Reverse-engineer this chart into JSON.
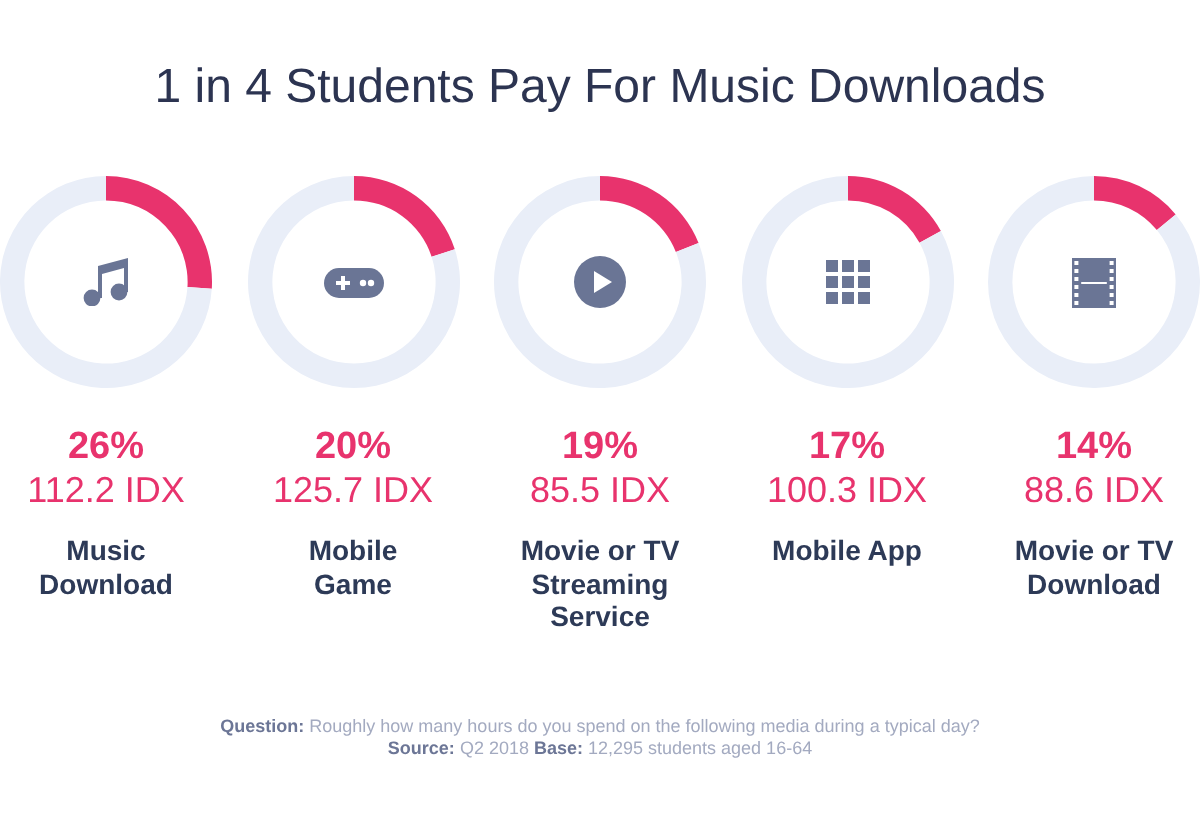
{
  "chart_data": [
    {
      "type": "other",
      "title": "1 in 4 Students Pay For Music Downloads"
    },
    {
      "type": "donut",
      "title": "Music Download",
      "categories": [
        null,
        null
      ],
      "values": [
        26,
        74
      ],
      "colors": [
        "#e8336d",
        "#e9eef8"
      ],
      "annotations": [
        "26%",
        "112.2 IDX"
      ]
    },
    {
      "type": "donut",
      "title": "Mobile Game",
      "categories": [
        null,
        null
      ],
      "values": [
        20,
        80
      ],
      "colors": [
        "#e8336d",
        "#e9eef8"
      ],
      "annotations": [
        "20%",
        "125.7 IDX"
      ]
    },
    {
      "type": "donut",
      "title": "Movie or TV Streaming Service",
      "categories": [
        null,
        null
      ],
      "values": [
        19,
        81
      ],
      "colors": [
        "#e8336d",
        "#e9eef8"
      ],
      "annotations": [
        "19%",
        "85.5 IDX"
      ]
    },
    {
      "type": "donut",
      "title": "Mobile App",
      "categories": [
        null,
        null
      ],
      "values": [
        17,
        83
      ],
      "colors": [
        "#e8336d",
        "#e9eef8"
      ],
      "annotations": [
        "17%",
        "100.3 IDX"
      ]
    },
    {
      "type": "donut",
      "title": "Movie or TV Download",
      "categories": [
        null,
        null
      ],
      "values": [
        14,
        86
      ],
      "colors": [
        "#e8336d",
        "#e9eef8"
      ],
      "annotations": [
        "14%",
        "88.6 IDX"
      ]
    },
    {
      "type": "other",
      "annotations": [
        "Question: Roughly how many hours do you spend on the following media during a typical day?",
        "Source: Q2 2018 Base: 12,295 students aged 16-64"
      ]
    }
  ]
}
